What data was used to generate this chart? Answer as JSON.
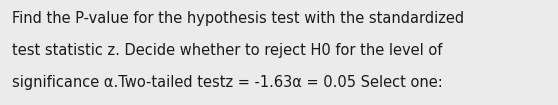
{
  "lines": [
    "Find the P-value for the hypothesis test with the standardized",
    "test statistic z. Decide whether to reject H0 for the level of",
    "significance α.Two-tailed testz = -1.63α = 0.05 Select one:"
  ],
  "background_color": "#ebebeb",
  "text_color": "#1a1a1a",
  "font_size": 10.5,
  "fig_width": 5.58,
  "fig_height": 1.05,
  "dpi": 100
}
